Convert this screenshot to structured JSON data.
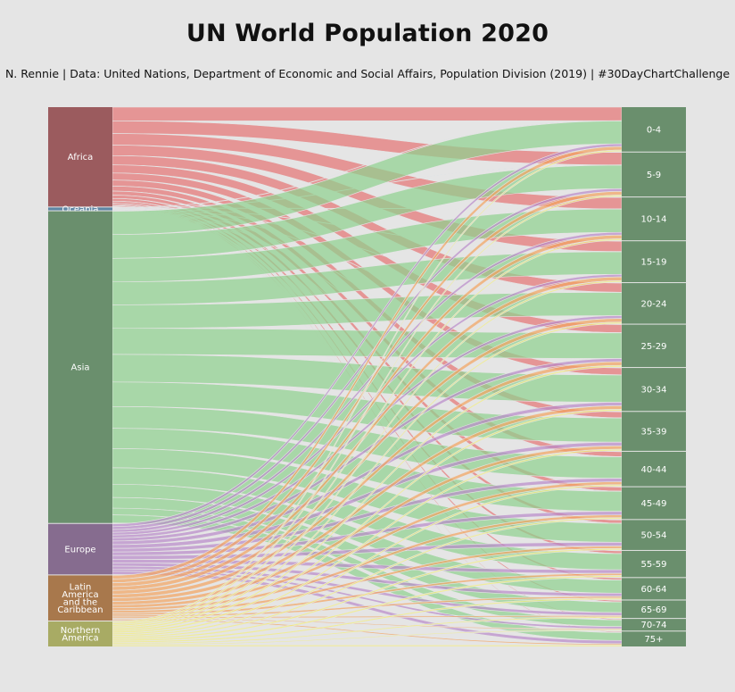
{
  "title": "UN World Population 2020",
  "subtitle": "N. Rennie | Data: United Nations, Department of Economic and Social Affairs, Population Division (2019) | #30DayChartChallenge",
  "chart_data": {
    "type": "sankey",
    "title": "UN World Population 2020",
    "regions": [
      {
        "name": "Africa",
        "label_lines": [
          "Africa"
        ],
        "color": "#e57373",
        "node_color": "#9b5b5e"
      },
      {
        "name": "Oceania",
        "label_lines": [
          "Oceania"
        ],
        "color": "#64b5f6",
        "node_color": "#5d85a3"
      },
      {
        "name": "Asia",
        "label_lines": [
          "Asia"
        ],
        "color": "#8ed28e",
        "node_color": "#6a8f6d"
      },
      {
        "name": "Europe",
        "label_lines": [
          "Europe"
        ],
        "color": "#b98acb",
        "node_color": "#866c8f"
      },
      {
        "name": "Latin America and the Caribbean",
        "label_lines": [
          "Latin",
          "America",
          "and the",
          "Caribbean"
        ],
        "color": "#f4a460",
        "node_color": "#a8784c"
      },
      {
        "name": "Northern America",
        "label_lines": [
          "Northern",
          "America"
        ],
        "color": "#f5f07a",
        "node_color": "#a8ab64"
      }
    ],
    "age_groups": [
      "0-4",
      "5-9",
      "10-14",
      "15-19",
      "20-24",
      "25-29",
      "30-34",
      "35-39",
      "40-44",
      "45-49",
      "50-54",
      "55-59",
      "60-64",
      "65-69",
      "70-74",
      "75+"
    ],
    "age_node_color": "#6a8f6d",
    "units": "millions (approx.)",
    "values": {
      "Africa": [
        196,
        180,
        165,
        149,
        132,
        116,
        100,
        86,
        71,
        58,
        47,
        38,
        29,
        21,
        14,
        13
      ],
      "Oceania": [
        3,
        3,
        3,
        3,
        3,
        3,
        3,
        3,
        3,
        3,
        2,
        2,
        2,
        2,
        1,
        2
      ],
      "Asia": [
        331,
        339,
        336,
        326,
        335,
        371,
        393,
        349,
        309,
        289,
        274,
        234,
        188,
        152,
        96,
        115
      ],
      "Europe": [
        39,
        41,
        40,
        38,
        40,
        46,
        51,
        54,
        51,
        51,
        53,
        51,
        46,
        42,
        31,
        46
      ],
      "Latin America and the Caribbean": [
        52,
        53,
        54,
        54,
        54,
        53,
        51,
        48,
        43,
        39,
        35,
        31,
        25,
        19,
        14,
        18
      ],
      "Northern America": [
        22,
        22,
        23,
        23,
        24,
        25,
        25,
        24,
        23,
        22,
        23,
        24,
        22,
        18,
        14,
        22
      ]
    }
  }
}
